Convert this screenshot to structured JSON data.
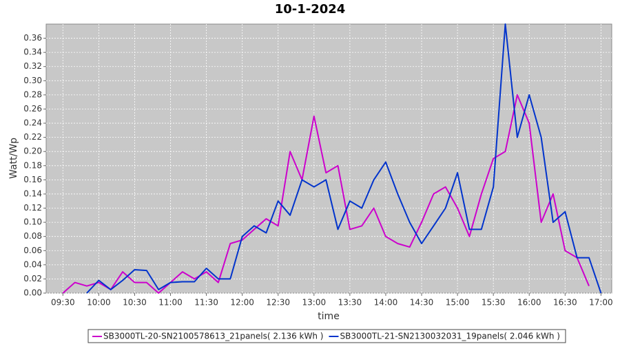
{
  "chart_data": {
    "type": "line",
    "title": "10-1-2024",
    "xlabel": "time",
    "ylabel": "Watt/Wp",
    "x": [
      "09:30",
      "09:40",
      "09:50",
      "10:00",
      "10:10",
      "10:20",
      "10:30",
      "10:40",
      "10:50",
      "11:00",
      "11:10",
      "11:20",
      "11:30",
      "11:40",
      "11:50",
      "12:00",
      "12:10",
      "12:20",
      "12:30",
      "12:40",
      "12:50",
      "13:00",
      "13:10",
      "13:20",
      "13:30",
      "13:40",
      "13:50",
      "14:00",
      "14:10",
      "14:20",
      "14:30",
      "14:40",
      "14:50",
      "15:00",
      "15:10",
      "15:20",
      "15:30",
      "15:40",
      "15:50",
      "16:00",
      "16:10",
      "16:20",
      "16:30",
      "16:40",
      "16:50",
      "17:00"
    ],
    "series": [
      {
        "name": "SB3000TL-20-SN2100578613_21panels( 2.136 kWh )",
        "color": "#cc00cc",
        "values": [
          0.0,
          0.015,
          0.01,
          0.015,
          0.005,
          0.03,
          0.015,
          0.015,
          0.0,
          0.015,
          0.03,
          0.02,
          0.03,
          0.015,
          0.07,
          0.075,
          0.09,
          0.105,
          0.095,
          0.2,
          0.16,
          0.25,
          0.17,
          0.18,
          0.09,
          0.095,
          0.12,
          0.08,
          0.07,
          0.065,
          0.1,
          0.14,
          0.15,
          0.12,
          0.08,
          0.14,
          0.19,
          0.2,
          0.28,
          0.24,
          0.1,
          0.14,
          0.06,
          0.05,
          0.01,
          null
        ]
      },
      {
        "name": "SB3000TL-21-SN2130032031_19panels( 2.046 kWh )",
        "color": "#0033cc",
        "values": [
          null,
          null,
          0.0,
          0.018,
          0.005,
          0.018,
          0.033,
          0.032,
          0.005,
          0.015,
          0.016,
          0.016,
          0.035,
          0.02,
          0.02,
          0.08,
          0.095,
          0.085,
          0.13,
          0.11,
          0.16,
          0.15,
          0.16,
          0.09,
          0.13,
          0.12,
          0.16,
          0.185,
          0.14,
          0.1,
          0.07,
          0.095,
          0.12,
          0.17,
          0.09,
          0.09,
          0.15,
          0.38,
          0.22,
          0.28,
          0.22,
          0.1,
          0.115,
          0.05,
          0.05,
          0.0
        ]
      }
    ],
    "xlim": [
      "09:16",
      "17:09"
    ],
    "xticks": [
      "09:30",
      "10:00",
      "10:30",
      "11:00",
      "11:30",
      "12:00",
      "12:30",
      "13:00",
      "13:30",
      "14:00",
      "14:30",
      "15:00",
      "15:30",
      "16:00",
      "16:30",
      "17:00"
    ],
    "ylim": [
      0,
      0.38
    ],
    "yticks": [
      {
        "value": 0,
        "label": "0.00"
      },
      {
        "value": 0.02,
        "label": "0.02"
      },
      {
        "value": 0.04,
        "label": "0.04"
      },
      {
        "value": 0.06,
        "label": "0.06"
      },
      {
        "value": 0.08,
        "label": "0.08"
      },
      {
        "value": 0.1,
        "label": "0.10"
      },
      {
        "value": 0.12,
        "label": "0.12"
      },
      {
        "value": 0.14,
        "label": "0.14"
      },
      {
        "value": 0.16,
        "label": "0.16"
      },
      {
        "value": 0.18,
        "label": "0.18"
      },
      {
        "value": 0.2,
        "label": "0.20"
      },
      {
        "value": 0.22,
        "label": "0.22"
      },
      {
        "value": 0.24,
        "label": "0.24"
      },
      {
        "value": 0.26,
        "label": "0.26"
      },
      {
        "value": 0.28,
        "label": "0.28"
      },
      {
        "value": 0.3,
        "label": "0.30"
      },
      {
        "value": 0.32,
        "label": "0.32"
      },
      {
        "value": 0.34,
        "label": "0.34"
      },
      {
        "value": 0.36,
        "label": "0.36"
      }
    ],
    "grid": true,
    "background": "#c8c8c8"
  }
}
